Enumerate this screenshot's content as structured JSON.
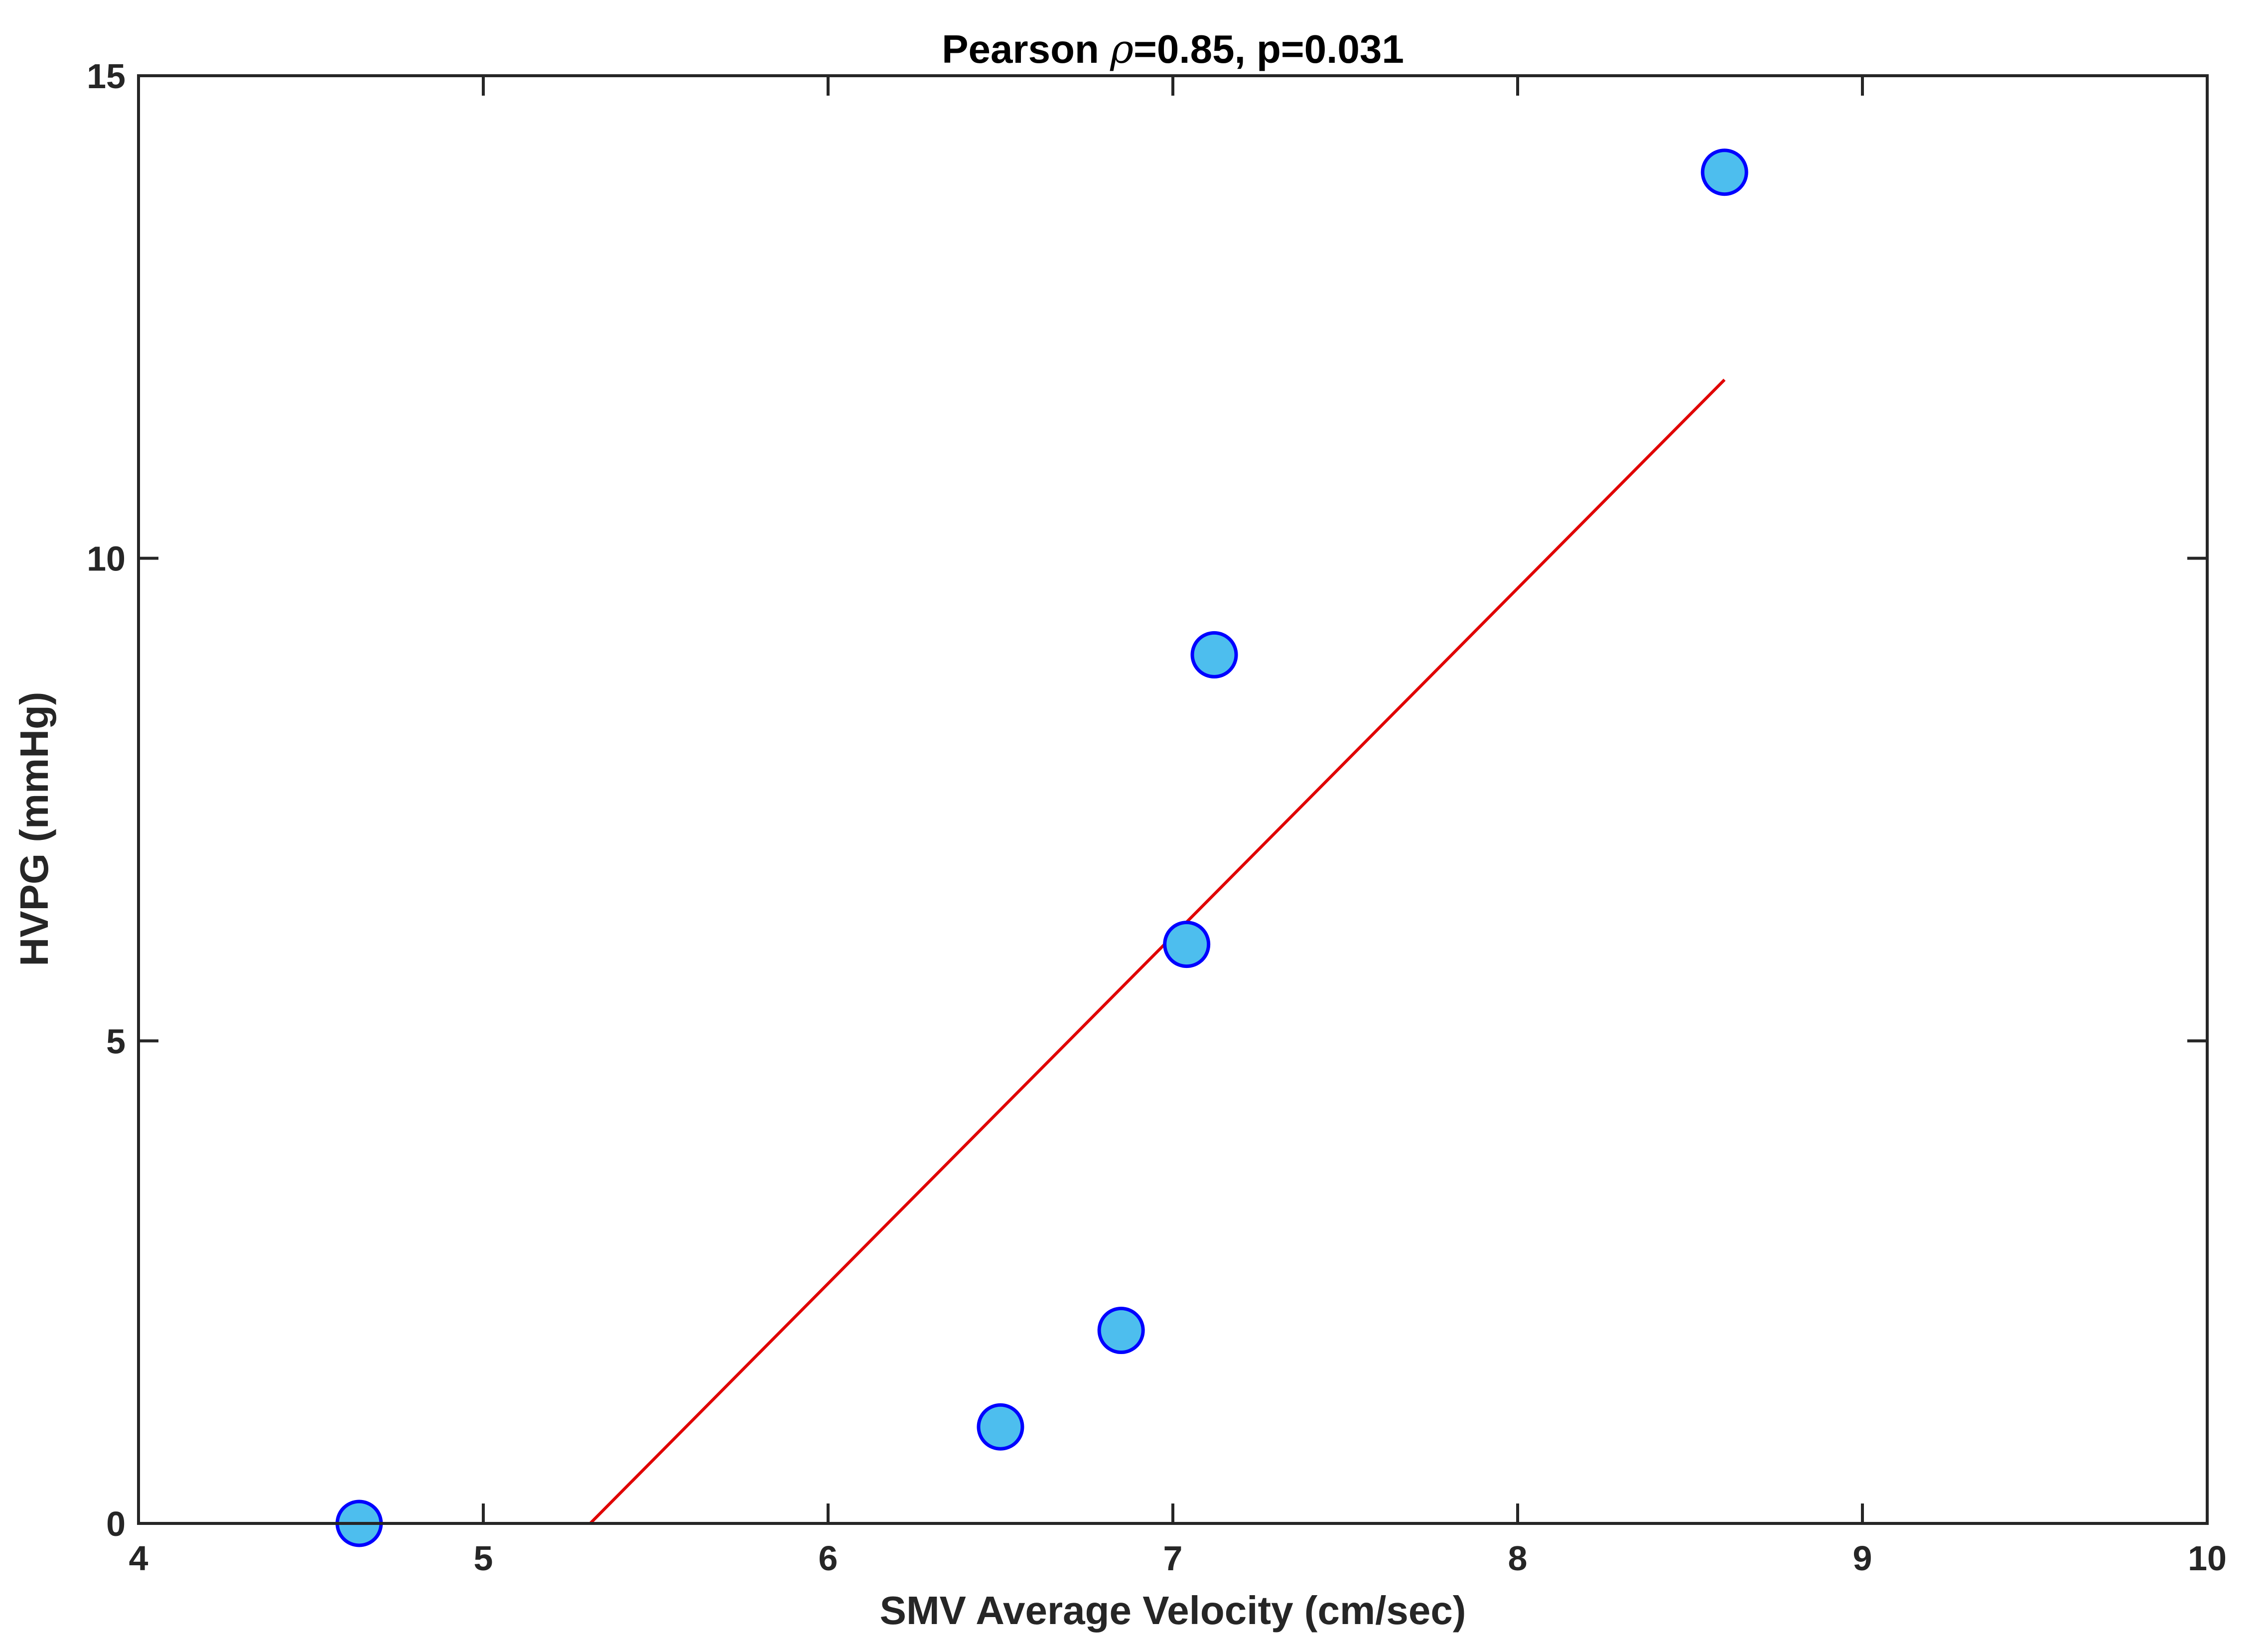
{
  "chart_data": {
    "type": "scatter",
    "title_prefix": "Pearson ",
    "title_symbol": "ρ",
    "title_suffix": "=0.85, p=0.031",
    "xlabel": "SMV Average Velocity (cm/sec)",
    "ylabel": "HVPG (mmHg)",
    "xlim": [
      4,
      10
    ],
    "ylim": [
      0,
      15
    ],
    "xticks": [
      4,
      5,
      6,
      7,
      8,
      9,
      10
    ],
    "yticks": [
      0,
      5,
      10,
      15
    ],
    "grid": false,
    "legend": "none",
    "points": [
      {
        "x": 4.64,
        "y": 0
      },
      {
        "x": 6.5,
        "y": 1
      },
      {
        "x": 6.85,
        "y": 2
      },
      {
        "x": 7.04,
        "y": 6
      },
      {
        "x": 7.12,
        "y": 9
      },
      {
        "x": 8.6,
        "y": 14
      }
    ],
    "fit_line": {
      "x": [
        5.31,
        8.6
      ],
      "y": [
        0,
        11.85
      ]
    },
    "colors": {
      "marker_fill": "#4DBEEE",
      "marker_edge": "#0000FF",
      "fit_line": "#E00000",
      "axes": "#262626"
    }
  }
}
